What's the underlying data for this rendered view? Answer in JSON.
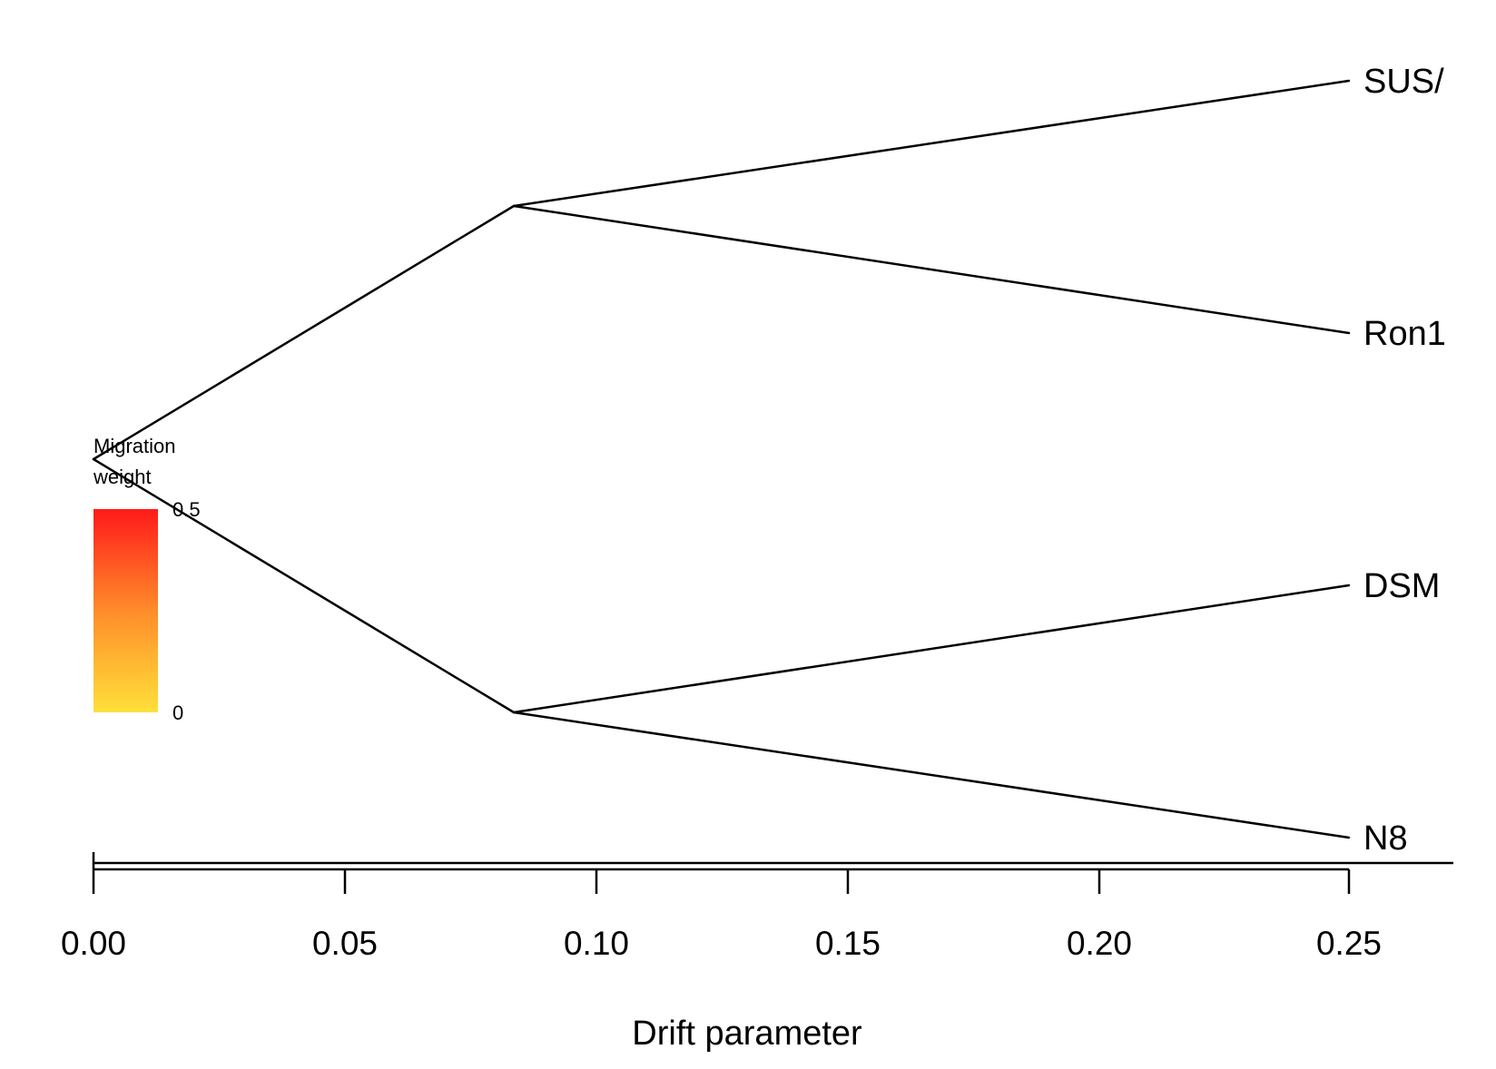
{
  "diagram": {
    "type": "treemix-tree",
    "xaxis": {
      "label": "Drift parameter",
      "ticks": [
        "0.00",
        "0.05",
        "0.10",
        "0.15",
        "0.20",
        "0.25"
      ]
    },
    "tips": [
      {
        "name": "SUSA",
        "shown": "SUS/"
      },
      {
        "name": "Ron1",
        "shown": "Ron1"
      },
      {
        "name": "DSM",
        "shown": "DSM"
      },
      {
        "name": "N8",
        "shown": "N8"
      }
    ],
    "legend": {
      "title_line1": "Migration",
      "title_line2": "weight",
      "max_label": "0.5",
      "min_label": "0",
      "color_high": "#ff1a1a",
      "color_mid": "#ff8c2a",
      "color_low": "#ffe03a"
    },
    "line_color": "#000000"
  }
}
